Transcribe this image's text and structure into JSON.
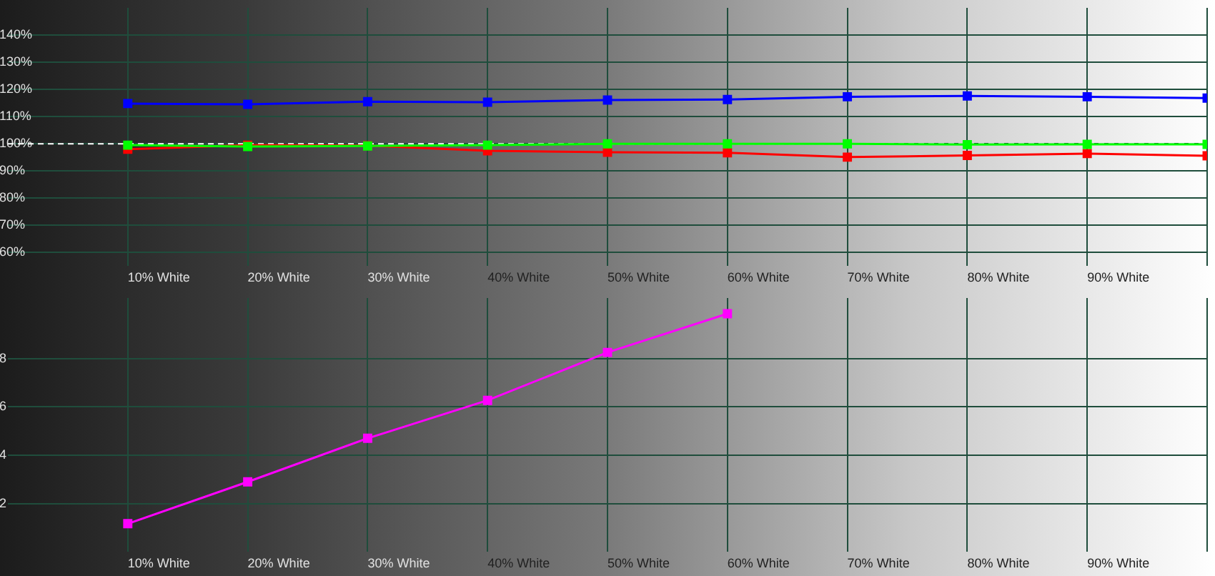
{
  "chart_data": [
    {
      "type": "line",
      "categories": [
        "10% White",
        "20% White",
        "30% White",
        "40% White",
        "50% White",
        "60% White",
        "70% White",
        "80% White",
        "90% White",
        null
      ],
      "series": [
        {
          "color": "#00ff00",
          "values": [
            99.5,
            99,
            99.2,
            99.5,
            100,
            100,
            100,
            99.7,
            99.8,
            99.8
          ]
        },
        {
          "color": "#0000ff",
          "values": [
            114.8,
            114.5,
            115.5,
            115.3,
            116.1,
            116.3,
            117.3,
            117.6,
            117.3,
            116.8
          ]
        },
        {
          "color": "#ff0000",
          "values": [
            98,
            99.5,
            99.3,
            97.4,
            96.9,
            96.7,
            95.1,
            95.7,
            96.4,
            95.6
          ]
        }
      ],
      "ylim": [
        55,
        150
      ],
      "yticks": [
        {
          "value": 60,
          "label": "60%"
        },
        {
          "value": 70,
          "label": "70%"
        },
        {
          "value": 80,
          "label": "80%"
        },
        {
          "value": 90,
          "label": "90%"
        },
        {
          "value": 100,
          "label": "100%"
        },
        {
          "value": 110,
          "label": "110%"
        },
        {
          "value": 120,
          "label": "120%"
        },
        {
          "value": 130,
          "label": "130%"
        },
        {
          "value": 140,
          "label": "140%"
        }
      ],
      "ref_lines": [
        {
          "axis": "y",
          "value": 100,
          "color": "#ffffff",
          "line_style": "dashed"
        }
      ],
      "grid": true,
      "marker": "square",
      "line_style": "solid"
    },
    {
      "type": "line",
      "categories": [
        "10% White",
        "20% White",
        "30% White",
        "40% White",
        "50% White",
        "60% White",
        "70% White",
        "80% White",
        "90% White",
        null
      ],
      "series": [
        {
          "color": "#ff00ff",
          "values": [
            1.17,
            2.9,
            4.7,
            6.27,
            8.25,
            9.85,
            null,
            null,
            null,
            null
          ]
        }
      ],
      "ylim": [
        0,
        10.5
      ],
      "yticks": [
        2,
        4,
        6,
        8
      ],
      "grid": true,
      "marker": "square",
      "line_style": "solid"
    }
  ]
}
